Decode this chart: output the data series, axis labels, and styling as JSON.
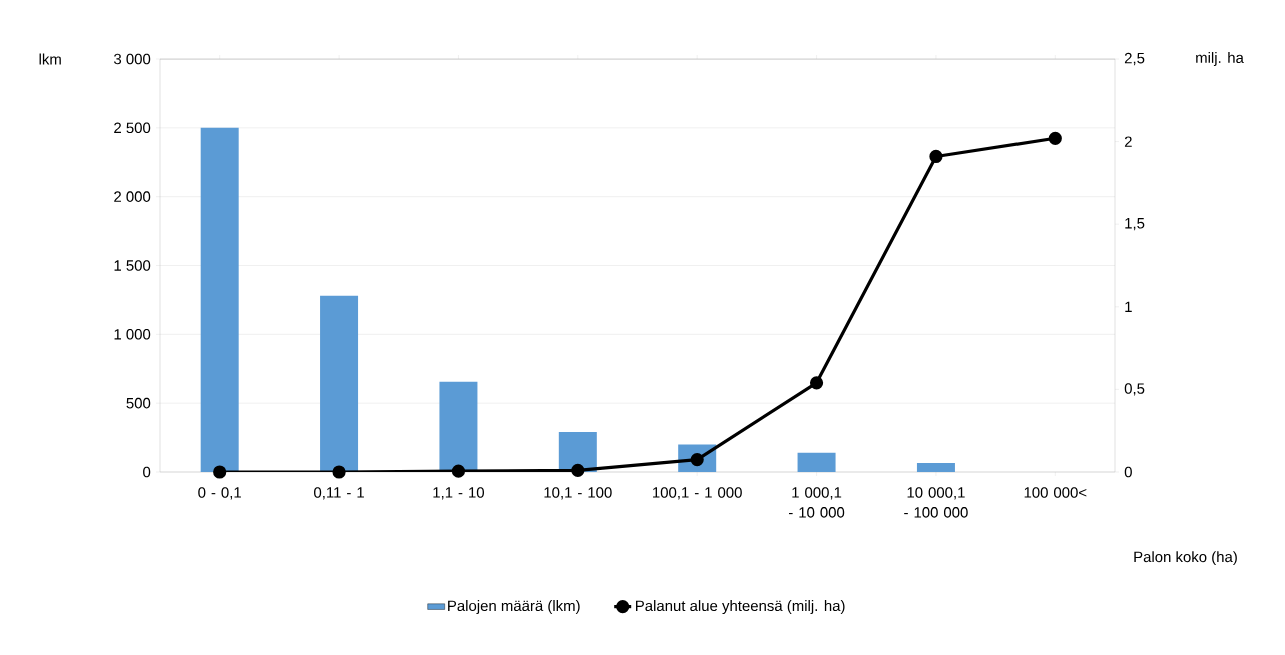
{
  "chart_data": {
    "type": "bar",
    "categories": [
      "0 - 0,1",
      "0,11 - 1",
      "1,1 - 10",
      "10,1 - 100",
      "100,1 - 1 000",
      "1 000,1 - 10 000",
      "10 000,1 - 100 000",
      "100 000<"
    ],
    "series": [
      {
        "name": "Palojen määrä (lkm)",
        "color": "#5b9bd5",
        "values": [
          2500,
          1280,
          655,
          290,
          200,
          140,
          65,
          0
        ]
      },
      {
        "name": "Palanut alue yhteensä (milj. ha)",
        "type": "line",
        "axis": "y2",
        "color": "#000000",
        "values": [
          0,
          0,
          0.005,
          0.01,
          0.075,
          0.54,
          1.91,
          2.02
        ]
      }
    ],
    "ylabel": "lkm",
    "y2label": "milj. ha",
    "xlabel": "Palon koko (ha)",
    "ylim": [
      0,
      3000
    ],
    "yticks": [
      0,
      500,
      {
        "value": 1000,
        "label": "1 000"
      },
      {
        "value": 1500,
        "label": "1 500"
      },
      {
        "value": 2000,
        "label": "2 000"
      },
      {
        "value": 2500,
        "label": "2 500"
      },
      {
        "value": 3000,
        "label": "3 000"
      }
    ],
    "y2lim": [
      0,
      2.5
    ],
    "y2ticks": [
      0,
      {
        "value": 0.5,
        "label": "0,5"
      },
      1,
      {
        "value": 1.5,
        "label": "1,5"
      },
      2,
      {
        "value": 2.5,
        "label": "2,5"
      }
    ],
    "grid": "y",
    "legend": "bottom",
    "marker": "circle"
  }
}
